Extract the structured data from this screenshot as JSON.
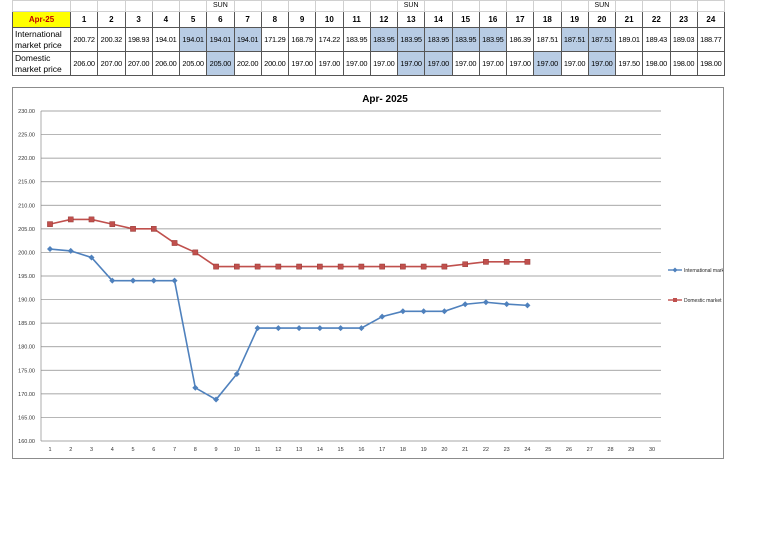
{
  "table": {
    "month_label": "Apr-25",
    "day_header": [
      "1",
      "2",
      "3",
      "4",
      "5",
      "6",
      "7",
      "8",
      "9",
      "10",
      "11",
      "12",
      "13",
      "14",
      "15",
      "16",
      "17",
      "18",
      "19",
      "20",
      "21",
      "22",
      "23",
      "24"
    ],
    "sun_marks": [
      "",
      "",
      "",
      "",
      "",
      "SUN",
      "",
      "",
      "",
      "",
      "",
      "",
      "SUN",
      "",
      "",
      "",
      "",
      "",
      "",
      "SUN",
      "",
      "",
      "",
      ""
    ],
    "rows": [
      {
        "label": "International market price",
        "values": [
          "200.72",
          "200.32",
          "198.93",
          "194.01",
          "194.01",
          "194.01",
          "194.01",
          "171.29",
          "168.79",
          "174.22",
          "183.95",
          "183.95",
          "183.95",
          "183.95",
          "183.95",
          "183.95",
          "186.39",
          "187.51",
          "187.51",
          "187.51",
          "189.01",
          "189.43",
          "189.03",
          "188.77"
        ],
        "highlight": [
          false,
          false,
          false,
          false,
          true,
          true,
          true,
          false,
          false,
          false,
          false,
          true,
          true,
          true,
          true,
          true,
          false,
          false,
          true,
          true,
          false,
          false,
          false,
          false
        ]
      },
      {
        "label": "Domestic market price",
        "values": [
          "206.00",
          "207.00",
          "207.00",
          "206.00",
          "205.00",
          "205.00",
          "202.00",
          "200.00",
          "197.00",
          "197.00",
          "197.00",
          "197.00",
          "197.00",
          "197.00",
          "197.00",
          "197.00",
          "197.00",
          "197.00",
          "197.00",
          "197.00",
          "197.50",
          "198.00",
          "198.00",
          "198.00"
        ],
        "highlight": [
          false,
          false,
          false,
          false,
          false,
          true,
          false,
          false,
          false,
          false,
          false,
          false,
          true,
          true,
          false,
          false,
          false,
          true,
          false,
          true,
          false,
          false,
          false,
          false
        ]
      }
    ]
  },
  "chart_data": {
    "type": "line",
    "title": "Apr- 2025",
    "x": [
      1,
      2,
      3,
      4,
      5,
      6,
      7,
      8,
      9,
      10,
      11,
      12,
      13,
      14,
      15,
      16,
      17,
      18,
      19,
      20,
      21,
      22,
      23,
      24
    ],
    "x_ticks": [
      "1",
      "2",
      "3",
      "4",
      "5",
      "6",
      "7",
      "8",
      "9",
      "10",
      "11",
      "12",
      "13",
      "14",
      "15",
      "16",
      "17",
      "18",
      "19",
      "20",
      "21",
      "22",
      "23",
      "24",
      "25",
      "26",
      "27",
      "28",
      "29",
      "30"
    ],
    "y_ticks": [
      "160.00",
      "165.00",
      "170.00",
      "175.00",
      "180.00",
      "185.00",
      "190.00",
      "195.00",
      "200.00",
      "205.00",
      "210.00",
      "215.00",
      "220.00",
      "225.00",
      "230.00"
    ],
    "ylim": [
      160,
      230
    ],
    "xlim": [
      1,
      30
    ],
    "grid": true,
    "legend_position": "right",
    "series": [
      {
        "name": "International market price",
        "color": "#4f81bd",
        "marker": "diamond",
        "values": [
          200.72,
          200.32,
          198.93,
          194.01,
          194.01,
          194.01,
          194.01,
          171.29,
          168.79,
          174.22,
          183.95,
          183.95,
          183.95,
          183.95,
          183.95,
          183.95,
          186.39,
          187.51,
          187.51,
          187.51,
          189.01,
          189.43,
          189.03,
          188.77
        ]
      },
      {
        "name": "Domestic market price",
        "color": "#c0504d",
        "marker": "square",
        "values": [
          206.0,
          207.0,
          207.0,
          206.0,
          205.0,
          205.0,
          202.0,
          200.0,
          197.0,
          197.0,
          197.0,
          197.0,
          197.0,
          197.0,
          197.0,
          197.0,
          197.0,
          197.0,
          197.0,
          197.0,
          197.5,
          198.0,
          198.0,
          198.0
        ]
      }
    ]
  }
}
